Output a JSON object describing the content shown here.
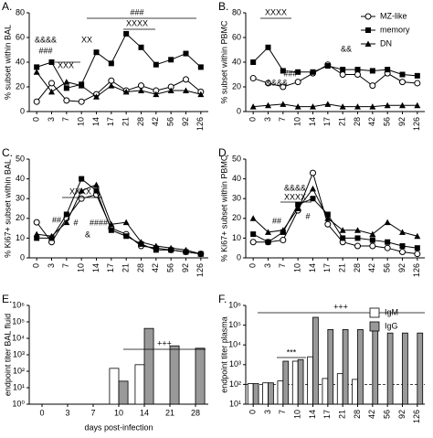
{
  "chart_data": [
    {
      "type": "line",
      "panel_label": "A.",
      "y_label": "% subset within BAL",
      "categories": [
        "0",
        "3",
        "7",
        "10",
        "14",
        "17",
        "21",
        "28",
        "42",
        "56",
        "92",
        "126"
      ],
      "series": [
        {
          "color": "#000000",
          "marker": "circle-open",
          "values": [
            8,
            23,
            9,
            8,
            14,
            25,
            17,
            21,
            17,
            20,
            26,
            16
          ]
        },
        {
          "color": "#000000",
          "marker": "square",
          "values": [
            36,
            40,
            19,
            22,
            48,
            39,
            63,
            52,
            38,
            42,
            47,
            36
          ]
        },
        {
          "color": "#000000",
          "marker": "triangle",
          "values": [
            32,
            16,
            24,
            21,
            12,
            21,
            16,
            17,
            14,
            17,
            17,
            14
          ]
        }
      ],
      "ylim": [
        0,
        80
      ],
      "yticks": [
        0,
        20,
        40,
        60,
        80
      ],
      "rotate_xticks": true,
      "annotations": [
        "&&&&",
        "###",
        "XXX",
        "XX",
        "###",
        "XXXX"
      ]
    },
    {
      "type": "line",
      "panel_label": "B.",
      "y_label": "% subset within PBMC",
      "categories": [
        "0",
        "3",
        "7",
        "10",
        "14",
        "17",
        "21",
        "28",
        "42",
        "56",
        "92",
        "126"
      ],
      "series": [
        {
          "name": "MZ-like",
          "color": "#000000",
          "marker": "circle-open",
          "values": [
            27,
            23,
            20,
            24,
            31,
            38,
            30,
            30,
            21,
            31,
            24,
            23
          ]
        },
        {
          "name": "memory",
          "color": "#000000",
          "marker": "square",
          "values": [
            40,
            52,
            33,
            32,
            32,
            37,
            34,
            34,
            33,
            34,
            30,
            29
          ]
        },
        {
          "name": "DN",
          "color": "#000000",
          "marker": "triangle",
          "values": [
            4,
            5,
            6,
            4,
            4,
            6,
            4,
            4,
            4,
            5,
            5,
            5
          ]
        }
      ],
      "ylim": [
        0,
        80
      ],
      "yticks": [
        0,
        20,
        40,
        60,
        80
      ],
      "rotate_xticks": true,
      "legend": "top-right",
      "annotations": [
        "XXXX",
        "&&",
        "###",
        "&&&&"
      ]
    },
    {
      "type": "line",
      "panel_label": "C.",
      "y_label": "% Ki67+ subset within BAL",
      "categories": [
        "0",
        "3",
        "7",
        "10",
        "14",
        "17",
        "21",
        "28",
        "42",
        "56",
        "92",
        "126"
      ],
      "series": [
        {
          "color": "#000000",
          "marker": "circle-open",
          "values": [
            18,
            8,
            20,
            30,
            32,
            15,
            12,
            6,
            5,
            4,
            3,
            2
          ]
        },
        {
          "color": "#000000",
          "marker": "square",
          "values": [
            10,
            10,
            22,
            40,
            34,
            14,
            11,
            7,
            4,
            4,
            3,
            2
          ]
        },
        {
          "color": "#000000",
          "marker": "triangle",
          "values": [
            12,
            11,
            18,
            34,
            37,
            17,
            18,
            8,
            6,
            5,
            4,
            2
          ]
        }
      ],
      "ylim": [
        0,
        50
      ],
      "yticks": [
        0,
        10,
        20,
        30,
        40,
        50
      ],
      "rotate_xticks": true,
      "annotations": [
        "XXXX",
        "##",
        "#",
        "####",
        "&"
      ]
    },
    {
      "type": "line",
      "panel_label": "D.",
      "y_label": "% Ki67+ subset within PBMC",
      "categories": [
        "0",
        "3",
        "7",
        "10",
        "14",
        "17",
        "21",
        "28",
        "42",
        "56",
        "92",
        "126"
      ],
      "series": [
        {
          "color": "#000000",
          "marker": "circle-open",
          "values": [
            8,
            8,
            9,
            24,
            43,
            17,
            8,
            6,
            6,
            5,
            3,
            2
          ]
        },
        {
          "color": "#000000",
          "marker": "square",
          "values": [
            12,
            8,
            13,
            27,
            30,
            22,
            10,
            10,
            9,
            8,
            6,
            5
          ]
        },
        {
          "color": "#000000",
          "marker": "triangle",
          "values": [
            20,
            13,
            14,
            25,
            35,
            20,
            14,
            14,
            12,
            18,
            13,
            11
          ]
        }
      ],
      "ylim": [
        0,
        50
      ],
      "yticks": [
        0,
        10,
        20,
        30,
        40,
        50
      ],
      "rotate_xticks": true,
      "annotations": [
        "&&&&",
        "XXXX",
        "#",
        "##"
      ]
    },
    {
      "type": "bar",
      "panel_label": "E.",
      "y_label": "endpoint titer BAL fluid",
      "x_label": "days post-infection",
      "categories": [
        "0",
        "3",
        "7",
        "10",
        "14",
        "21",
        "28"
      ],
      "series": [
        {
          "color": "#ffffff",
          "values": [
            null,
            null,
            null,
            150,
            250,
            null,
            null
          ]
        },
        {
          "color": "#999999",
          "values": [
            null,
            null,
            null,
            25,
            40000,
            3500,
            2500
          ]
        }
      ],
      "log_scale": true,
      "ylim": [
        1,
        1000000
      ],
      "yticks": [
        {
          "value": 1,
          "label": "10⁰"
        },
        {
          "value": 10,
          "label": "10¹"
        },
        {
          "value": 100,
          "label": "10²"
        },
        {
          "value": 1000,
          "label": "10³"
        },
        {
          "value": 10000,
          "label": "10⁴"
        },
        {
          "value": 100000,
          "label": "10⁵"
        },
        {
          "value": 1000000,
          "label": "10⁶"
        }
      ],
      "rotate_xticks": false,
      "annotations": [
        "+++"
      ]
    },
    {
      "type": "bar",
      "panel_label": "F.",
      "y_label": "endpoint titer plasma",
      "categories": [
        "0",
        "3",
        "7",
        "10",
        "14",
        "17",
        "21",
        "28",
        "42",
        "56",
        "92",
        "126"
      ],
      "series": [
        {
          "name": "IgM",
          "color": "#ffffff",
          "values": [
            110,
            120,
            150,
            1500,
            2500,
            200,
            350,
            180,
            null,
            null,
            null,
            null
          ]
        },
        {
          "name": "IgG",
          "color": "#999999",
          "values": [
            110,
            120,
            1500,
            1800,
            250000,
            60000,
            60000,
            60000,
            80000,
            40000,
            40000,
            40000
          ]
        }
      ],
      "log_scale": true,
      "ylim": [
        10,
        1000000
      ],
      "reference_line": 100,
      "yticks": [
        {
          "value": 10,
          "label": "10¹"
        },
        {
          "value": 100,
          "label": "10²"
        },
        {
          "value": 1000,
          "label": "10³"
        },
        {
          "value": 10000,
          "label": "10⁴"
        },
        {
          "value": 100000,
          "label": "10⁵"
        },
        {
          "value": 1000000,
          "label": "10⁶"
        }
      ],
      "rotate_xticks": true,
      "legend": "top-right",
      "annotations": [
        "+++",
        "***"
      ]
    }
  ]
}
